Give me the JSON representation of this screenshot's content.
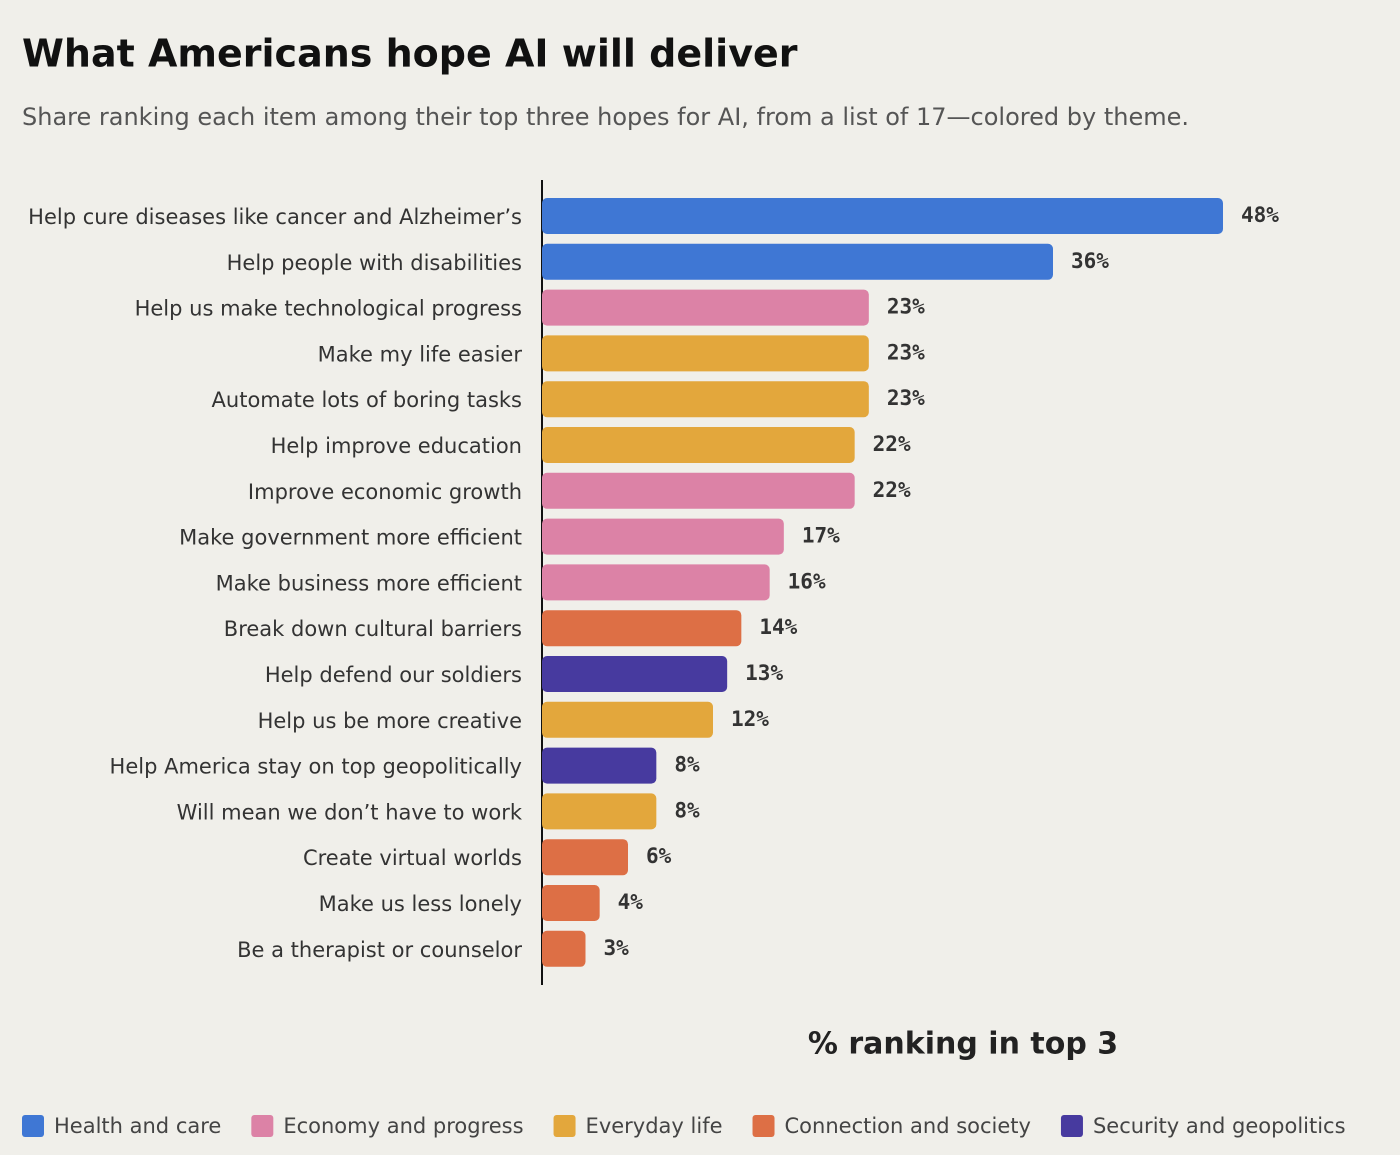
{
  "chart_data": {
    "type": "bar",
    "orientation": "horizontal",
    "title": "What Americans hope AI will deliver",
    "subtitle": "Share ranking each item among their top three hopes for AI, from a list of 17—colored by theme.",
    "xlabel": "% ranking in top 3",
    "categories": [
      "Help cure diseases like cancer and Alzheimer’s",
      "Help people with disabilities",
      "Help us make technological progress",
      "Make my life easier",
      "Automate lots of boring tasks",
      "Help improve education",
      "Improve economic growth",
      "Make government more efficient",
      "Make business more efficient",
      "Break down cultural barriers",
      "Help defend our soldiers",
      "Help us be more creative",
      "Help America stay on top geopolitically",
      "Will mean we don’t have to work",
      "Create virtual worlds",
      "Make us less lonely",
      "Be a therapist or counselor"
    ],
    "values": [
      48,
      36,
      23,
      23,
      23,
      22,
      22,
      17,
      16,
      14,
      13,
      12,
      8,
      8,
      6,
      4,
      3
    ],
    "value_labels": [
      "48%",
      "36%",
      "23%",
      "23%",
      "23%",
      "22%",
      "22%",
      "17%",
      "16%",
      "14%",
      "13%",
      "12%",
      "8%",
      "8%",
      "6%",
      "4%",
      "3%"
    ],
    "colors": [
      "#3f77d4",
      "#3f77d4",
      "#dc82a6",
      "#e3a73c",
      "#e3a73c",
      "#e3a73c",
      "#dc82a6",
      "#dc82a6",
      "#dc82a6",
      "#dd6f45",
      "#473a9f",
      "#e3a73c",
      "#473a9f",
      "#e3a73c",
      "#dd6f45",
      "#dd6f45",
      "#dd6f45"
    ],
    "legend": [
      {
        "name": "Health and care",
        "color": "#3f77d4"
      },
      {
        "name": "Economy and progress",
        "color": "#dc82a6"
      },
      {
        "name": "Everyday life",
        "color": "#e3a73c"
      },
      {
        "name": "Connection and society",
        "color": "#dd6f45"
      },
      {
        "name": "Security and geopolitics",
        "color": "#473a9f"
      }
    ]
  }
}
